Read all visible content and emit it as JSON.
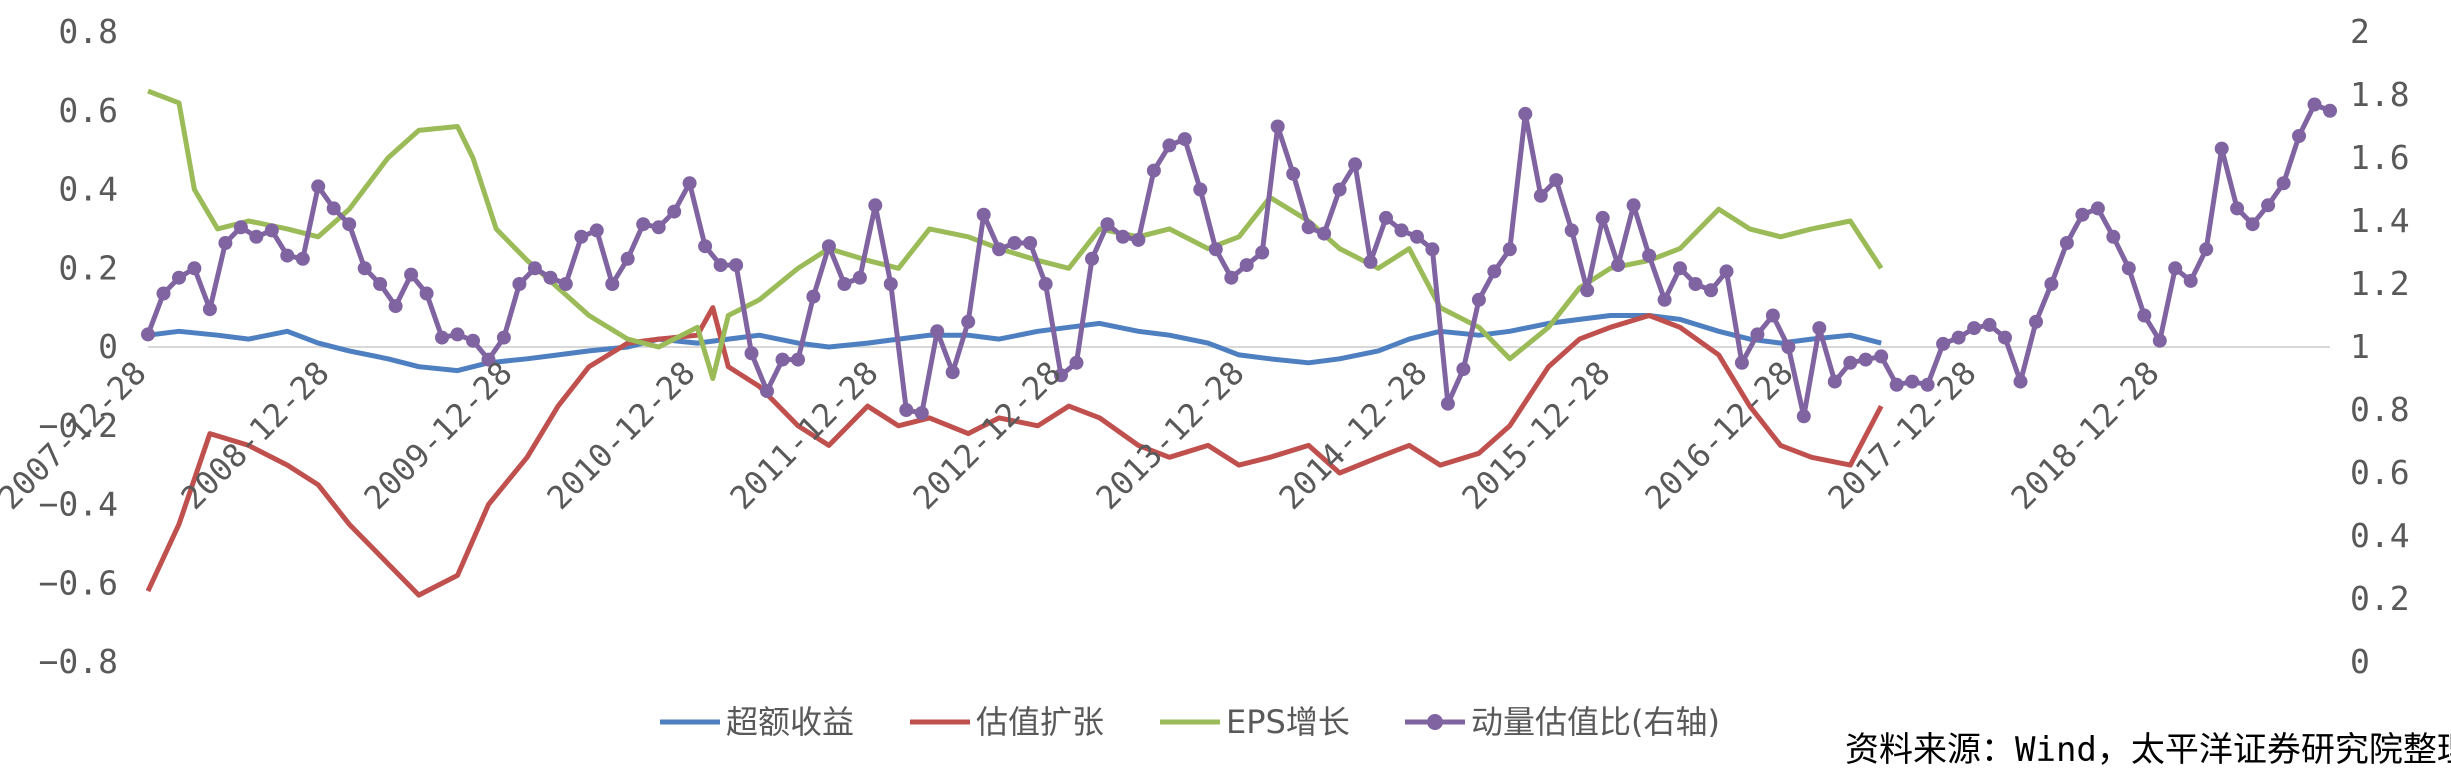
{
  "chart_data": {
    "type": "line",
    "source_note": "资料来源：Wind，太平洋证券研究院整理",
    "x_tick_labels": [
      "2007-12-28",
      "2008-12-28",
      "2009-12-28",
      "2010-12-28",
      "2011-12-28",
      "2012-12-28",
      "2013-12-28",
      "2014-12-28",
      "2015-12-28",
      "2016-12-28",
      "2017-12-28",
      "2018-12-28"
    ],
    "y_left": {
      "min": -0.8,
      "max": 0.8,
      "ticks": [
        "0.8",
        "0.6",
        "0.4",
        "0.2",
        "0",
        "−0.2",
        "−0.4",
        "−0.6",
        "−0.8"
      ]
    },
    "y_right": {
      "min": 0,
      "max": 2,
      "ticks": [
        "2",
        "1.8",
        "1.6",
        "1.4",
        "1.2",
        "1",
        "0.8",
        "0.6",
        "0.4",
        "0.2",
        "0"
      ]
    },
    "series": [
      {
        "name": "超额收益",
        "axis": "left",
        "color": "#4E7FC0",
        "markers": false,
        "values": [
          [
            0,
            0.03
          ],
          [
            4,
            0.04
          ],
          [
            9,
            0.03
          ],
          [
            13,
            0.02
          ],
          [
            18,
            0.04
          ],
          [
            22,
            0.01
          ],
          [
            26,
            -0.01
          ],
          [
            31,
            -0.03
          ],
          [
            35,
            -0.05
          ],
          [
            40,
            -0.06
          ],
          [
            44,
            -0.04
          ],
          [
            49,
            -0.03
          ],
          [
            53,
            -0.02
          ],
          [
            57,
            -0.01
          ],
          [
            62,
            0
          ],
          [
            66,
            0.02
          ],
          [
            71,
            0.01
          ],
          [
            75,
            0.02
          ],
          [
            79,
            0.03
          ],
          [
            84,
            0.01
          ],
          [
            88,
            0
          ],
          [
            93,
            0.01
          ],
          [
            97,
            0.02
          ],
          [
            101,
            0.03
          ],
          [
            106,
            0.03
          ],
          [
            110,
            0.02
          ],
          [
            115,
            0.04
          ],
          [
            119,
            0.05
          ],
          [
            123,
            0.06
          ],
          [
            128,
            0.04
          ],
          [
            132,
            0.03
          ],
          [
            137,
            0.01
          ],
          [
            141,
            -0.02
          ],
          [
            145,
            -0.03
          ],
          [
            150,
            -0.04
          ],
          [
            154,
            -0.03
          ],
          [
            159,
            -0.01
          ],
          [
            163,
            0.02
          ],
          [
            167,
            0.04
          ],
          [
            172,
            0.03
          ],
          [
            176,
            0.04
          ],
          [
            181,
            0.06
          ],
          [
            185,
            0.07
          ],
          [
            189,
            0.08
          ],
          [
            194,
            0.08
          ],
          [
            198,
            0.07
          ],
          [
            203,
            0.04
          ],
          [
            207,
            0.02
          ],
          [
            211,
            0.01
          ],
          [
            215,
            0.02
          ],
          [
            220,
            0.03
          ],
          [
            224,
            0.01
          ]
        ]
      },
      {
        "name": "估值扩张",
        "axis": "left",
        "color": "#C0504D",
        "markers": false,
        "values": [
          [
            0,
            -0.62
          ],
          [
            4,
            -0.45
          ],
          [
            8,
            -0.22
          ],
          [
            13,
            -0.25
          ],
          [
            18,
            -0.3
          ],
          [
            22,
            -0.35
          ],
          [
            26,
            -0.45
          ],
          [
            31,
            -0.55
          ],
          [
            35,
            -0.63
          ],
          [
            40,
            -0.58
          ],
          [
            44,
            -0.4
          ],
          [
            49,
            -0.28
          ],
          [
            53,
            -0.15
          ],
          [
            57,
            -0.05
          ],
          [
            62,
            0.01
          ],
          [
            66,
            0.02
          ],
          [
            71,
            0.03
          ],
          [
            73,
            0.1
          ],
          [
            75,
            -0.05
          ],
          [
            79,
            -0.1
          ],
          [
            84,
            -0.2
          ],
          [
            88,
            -0.25
          ],
          [
            93,
            -0.15
          ],
          [
            97,
            -0.2
          ],
          [
            101,
            -0.18
          ],
          [
            106,
            -0.22
          ],
          [
            110,
            -0.18
          ],
          [
            115,
            -0.2
          ],
          [
            119,
            -0.15
          ],
          [
            123,
            -0.18
          ],
          [
            128,
            -0.25
          ],
          [
            132,
            -0.28
          ],
          [
            137,
            -0.25
          ],
          [
            141,
            -0.3
          ],
          [
            145,
            -0.28
          ],
          [
            150,
            -0.25
          ],
          [
            154,
            -0.32
          ],
          [
            159,
            -0.28
          ],
          [
            163,
            -0.25
          ],
          [
            167,
            -0.3
          ],
          [
            172,
            -0.27
          ],
          [
            176,
            -0.2
          ],
          [
            181,
            -0.05
          ],
          [
            185,
            0.02
          ],
          [
            189,
            0.05
          ],
          [
            194,
            0.08
          ],
          [
            198,
            0.05
          ],
          [
            203,
            -0.02
          ],
          [
            207,
            -0.15
          ],
          [
            211,
            -0.25
          ],
          [
            215,
            -0.28
          ],
          [
            220,
            -0.3
          ],
          [
            224,
            -0.15
          ]
        ]
      },
      {
        "name": "EPS增长",
        "axis": "left",
        "color": "#9BBB59",
        "markers": false,
        "values": [
          [
            0,
            0.65
          ],
          [
            4,
            0.62
          ],
          [
            6,
            0.4
          ],
          [
            9,
            0.3
          ],
          [
            13,
            0.32
          ],
          [
            18,
            0.3
          ],
          [
            22,
            0.28
          ],
          [
            26,
            0.35
          ],
          [
            31,
            0.48
          ],
          [
            35,
            0.55
          ],
          [
            40,
            0.56
          ],
          [
            42,
            0.48
          ],
          [
            45,
            0.3
          ],
          [
            49,
            0.22
          ],
          [
            53,
            0.15
          ],
          [
            57,
            0.08
          ],
          [
            62,
            0.02
          ],
          [
            66,
            0
          ],
          [
            71,
            0.05
          ],
          [
            73,
            -0.08
          ],
          [
            75,
            0.08
          ],
          [
            79,
            0.12
          ],
          [
            84,
            0.2
          ],
          [
            88,
            0.25
          ],
          [
            93,
            0.22
          ],
          [
            97,
            0.2
          ],
          [
            101,
            0.3
          ],
          [
            106,
            0.28
          ],
          [
            110,
            0.25
          ],
          [
            115,
            0.22
          ],
          [
            119,
            0.2
          ],
          [
            123,
            0.3
          ],
          [
            128,
            0.28
          ],
          [
            132,
            0.3
          ],
          [
            137,
            0.25
          ],
          [
            141,
            0.28
          ],
          [
            145,
            0.38
          ],
          [
            150,
            0.32
          ],
          [
            154,
            0.25
          ],
          [
            159,
            0.2
          ],
          [
            163,
            0.25
          ],
          [
            167,
            0.1
          ],
          [
            172,
            0.05
          ],
          [
            176,
            -0.03
          ],
          [
            181,
            0.05
          ],
          [
            185,
            0.15
          ],
          [
            189,
            0.2
          ],
          [
            194,
            0.22
          ],
          [
            198,
            0.25
          ],
          [
            203,
            0.35
          ],
          [
            207,
            0.3
          ],
          [
            211,
            0.28
          ],
          [
            215,
            0.3
          ],
          [
            220,
            0.32
          ],
          [
            224,
            0.2
          ]
        ]
      },
      {
        "name": "动量估值比(右轴)",
        "axis": "right",
        "color": "#8064A2",
        "markers": true,
        "values": [
          [
            0,
            1.04
          ],
          [
            2,
            1.17
          ],
          [
            4,
            1.22
          ],
          [
            6,
            1.25
          ],
          [
            8,
            1.12
          ],
          [
            10,
            1.33
          ],
          [
            12,
            1.38
          ],
          [
            14,
            1.35
          ],
          [
            16,
            1.37
          ],
          [
            18,
            1.29
          ],
          [
            20,
            1.28
          ],
          [
            22,
            1.51
          ],
          [
            24,
            1.44
          ],
          [
            26,
            1.39
          ],
          [
            28,
            1.25
          ],
          [
            30,
            1.2
          ],
          [
            32,
            1.13
          ],
          [
            34,
            1.23
          ],
          [
            36,
            1.17
          ],
          [
            38,
            1.03
          ],
          [
            40,
            1.04
          ],
          [
            42,
            1.02
          ],
          [
            44,
            0.96
          ],
          [
            46,
            1.03
          ],
          [
            48,
            1.2
          ],
          [
            50,
            1.25
          ],
          [
            52,
            1.22
          ],
          [
            54,
            1.2
          ],
          [
            56,
            1.35
          ],
          [
            58,
            1.37
          ],
          [
            60,
            1.2
          ],
          [
            62,
            1.28
          ],
          [
            64,
            1.39
          ],
          [
            66,
            1.38
          ],
          [
            68,
            1.43
          ],
          [
            70,
            1.52
          ],
          [
            72,
            1.32
          ],
          [
            74,
            1.26
          ],
          [
            76,
            1.26
          ],
          [
            78,
            0.98
          ],
          [
            80,
            0.86
          ],
          [
            82,
            0.96
          ],
          [
            84,
            0.96
          ],
          [
            86,
            1.16
          ],
          [
            88,
            1.32
          ],
          [
            90,
            1.2
          ],
          [
            92,
            1.22
          ],
          [
            94,
            1.45
          ],
          [
            96,
            1.2
          ],
          [
            98,
            0.8
          ],
          [
            100,
            0.79
          ],
          [
            102,
            1.05
          ],
          [
            104,
            0.92
          ],
          [
            106,
            1.08
          ],
          [
            108,
            1.42
          ],
          [
            110,
            1.31
          ],
          [
            112,
            1.33
          ],
          [
            114,
            1.33
          ],
          [
            116,
            1.2
          ],
          [
            118,
            0.91
          ],
          [
            120,
            0.95
          ],
          [
            122,
            1.28
          ],
          [
            124,
            1.39
          ],
          [
            126,
            1.35
          ],
          [
            128,
            1.34
          ],
          [
            130,
            1.56
          ],
          [
            132,
            1.64
          ],
          [
            134,
            1.66
          ],
          [
            136,
            1.5
          ],
          [
            138,
            1.31
          ],
          [
            140,
            1.22
          ],
          [
            142,
            1.26
          ],
          [
            144,
            1.3
          ],
          [
            146,
            1.7
          ],
          [
            148,
            1.55
          ],
          [
            150,
            1.38
          ],
          [
            152,
            1.36
          ],
          [
            154,
            1.5
          ],
          [
            156,
            1.58
          ],
          [
            158,
            1.27
          ],
          [
            160,
            1.41
          ],
          [
            162,
            1.37
          ],
          [
            164,
            1.35
          ],
          [
            166,
            1.31
          ],
          [
            168,
            0.82
          ],
          [
            170,
            0.93
          ],
          [
            172,
            1.15
          ],
          [
            174,
            1.24
          ],
          [
            176,
            1.31
          ],
          [
            178,
            1.74
          ],
          [
            180,
            1.48
          ],
          [
            182,
            1.53
          ],
          [
            184,
            1.37
          ],
          [
            186,
            1.18
          ],
          [
            188,
            1.41
          ],
          [
            190,
            1.26
          ],
          [
            192,
            1.45
          ],
          [
            194,
            1.29
          ],
          [
            196,
            1.15
          ],
          [
            198,
            1.25
          ],
          [
            200,
            1.2
          ],
          [
            202,
            1.18
          ],
          [
            204,
            1.24
          ],
          [
            206,
            0.95
          ],
          [
            208,
            1.04
          ],
          [
            210,
            1.1
          ],
          [
            212,
            1.0
          ],
          [
            214,
            0.78
          ],
          [
            216,
            1.06
          ],
          [
            218,
            0.89
          ],
          [
            220,
            0.95
          ],
          [
            222,
            0.96
          ],
          [
            224,
            0.97
          ],
          [
            226,
            0.88
          ],
          [
            228,
            0.89
          ],
          [
            230,
            0.88
          ],
          [
            232,
            1.01
          ],
          [
            234,
            1.03
          ],
          [
            236,
            1.06
          ],
          [
            238,
            1.07
          ],
          [
            240,
            1.03
          ],
          [
            242,
            0.89
          ],
          [
            244,
            1.08
          ],
          [
            246,
            1.2
          ],
          [
            248,
            1.33
          ],
          [
            250,
            1.42
          ],
          [
            252,
            1.44
          ],
          [
            254,
            1.35
          ],
          [
            256,
            1.25
          ],
          [
            258,
            1.1
          ],
          [
            260,
            1.02
          ],
          [
            262,
            1.25
          ],
          [
            264,
            1.21
          ],
          [
            266,
            1.31
          ],
          [
            268,
            1.63
          ],
          [
            270,
            1.44
          ],
          [
            272,
            1.39
          ],
          [
            274,
            1.45
          ],
          [
            276,
            1.52
          ],
          [
            278,
            1.67
          ],
          [
            280,
            1.77
          ],
          [
            282,
            1.75
          ]
        ]
      }
    ]
  }
}
